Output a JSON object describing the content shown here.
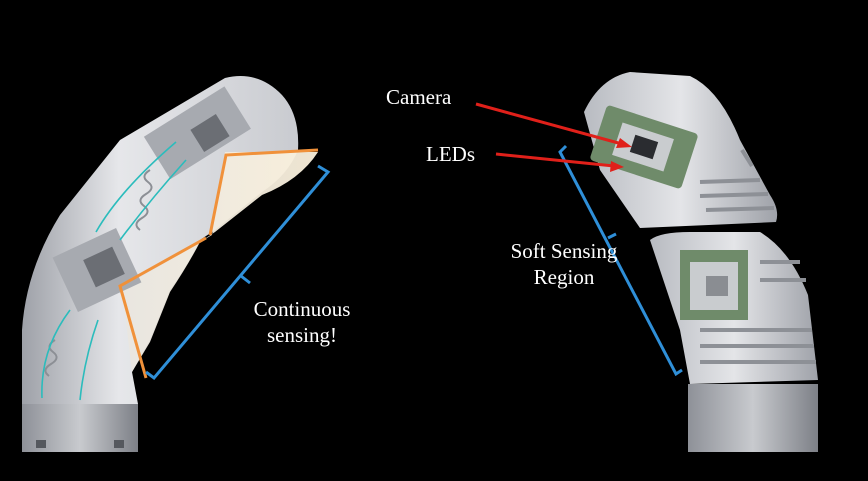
{
  "left_figure": {
    "annotation_lines": [
      "Continuous",
      "sensing!"
    ]
  },
  "right_figure": {
    "camera_label": "Camera",
    "leds_label": "LEDs",
    "region_lines": [
      "Soft Sensing",
      "Region"
    ]
  },
  "colors": {
    "background": "#000000",
    "light_ray": "#f0913a",
    "bracket": "#2f8fd8",
    "pointer_arrow": "#e0201a",
    "channel_line": "#2bbcbc",
    "shell": "#d9dbe0"
  }
}
